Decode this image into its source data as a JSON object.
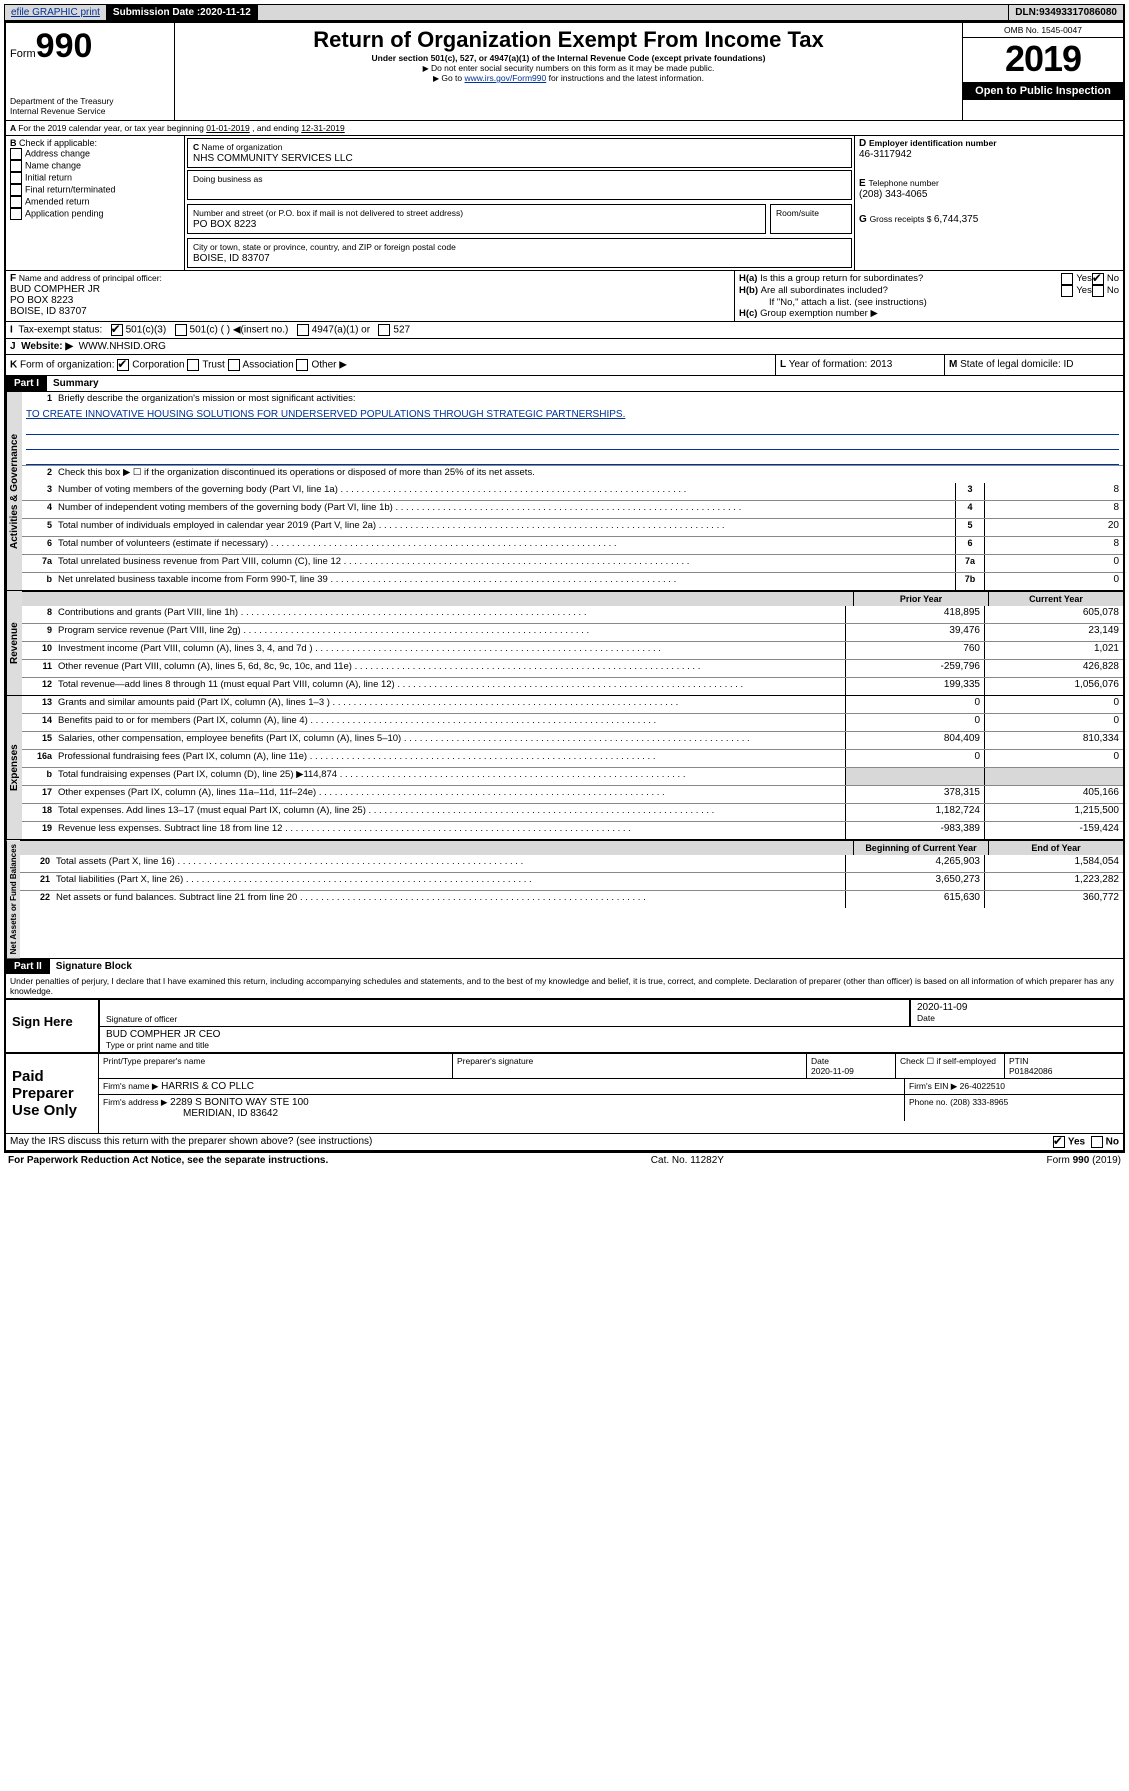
{
  "topbar": {
    "efile": "efile GRAPHIC print",
    "sub_label": "Submission Date : ",
    "sub_date": "2020-11-12",
    "dln_label": "DLN: ",
    "dln": "93493317086080"
  },
  "header": {
    "form_word": "Form",
    "form_num": "990",
    "dept1": "Department of the Treasury",
    "dept2": "Internal Revenue Service",
    "title": "Return of Organization Exempt From Income Tax",
    "sub1": "Under section 501(c), 527, or 4947(a)(1) of the Internal Revenue Code (except private foundations)",
    "sub2": "Do not enter social security numbers on this form as it may be made public.",
    "sub3a": "Go to ",
    "sub3_link": "www.irs.gov/Form990",
    "sub3b": " for instructions and the latest information.",
    "omb": "OMB No. 1545-0047",
    "year": "2019",
    "open": "Open to Public Inspection"
  },
  "A": {
    "text": "For the 2019 calendar year, or tax year beginning ",
    "begin": "01-01-2019",
    "mid": " , and ending ",
    "end": "12-31-2019"
  },
  "B": {
    "label": "Check if applicable:",
    "opts": [
      "Address change",
      "Name change",
      "Initial return",
      "Final return/terminated",
      "Amended return",
      "Application pending"
    ]
  },
  "C": {
    "name_label": "Name of organization",
    "name": "NHS COMMUNITY SERVICES LLC",
    "dba_label": "Doing business as",
    "addr_label": "Number and street (or P.O. box if mail is not delivered to street address)",
    "room_label": "Room/suite",
    "addr": "PO BOX 8223",
    "city_label": "City or town, state or province, country, and ZIP or foreign postal code",
    "city": "BOISE, ID  83707"
  },
  "D": {
    "label": "Employer identification number",
    "val": "46-3117942"
  },
  "E": {
    "label": "Telephone number",
    "val": "(208) 343-4065"
  },
  "G": {
    "label": "Gross receipts $ ",
    "val": "6,744,375"
  },
  "F": {
    "label": "Name and address of principal officer:",
    "l1": "BUD COMPHER JR",
    "l2": "PO BOX 8223",
    "l3": "BOISE, ID  83707"
  },
  "H": {
    "a": "Is this a group return for subordinates?",
    "b": "Are all subordinates included?",
    "b_note": "If \"No,\" attach a list. (see instructions)",
    "c": "Group exemption number ▶",
    "yes": "Yes",
    "no": "No"
  },
  "I": {
    "label": "Tax-exempt status:",
    "o1": "501(c)(3)",
    "o2": "501(c) (  ) ◀(insert no.)",
    "o3": "4947(a)(1) or",
    "o4": "527"
  },
  "J": {
    "label": "Website: ▶",
    "val": "WWW.NHSID.ORG"
  },
  "K": {
    "label": "Form of organization:",
    "o1": "Corporation",
    "o2": "Trust",
    "o3": "Association",
    "o4": "Other ▶"
  },
  "L": {
    "label": "Year of formation: ",
    "val": "2013"
  },
  "M": {
    "label": "State of legal domicile: ",
    "val": "ID"
  },
  "part1": {
    "hdr": "Part I",
    "title": "Summary",
    "l1": "Briefly describe the organization's mission or most significant activities:",
    "mission": "TO CREATE INNOVATIVE HOUSING SOLUTIONS FOR UNDERSERVED POPULATIONS THROUGH STRATEGIC PARTNERSHIPS.",
    "l2": "Check this box ▶ ☐  if the organization discontinued its operations or disposed of more than 25% of its net assets.",
    "tab_ag": "Activities & Governance",
    "tab_rev": "Revenue",
    "tab_exp": "Expenses",
    "tab_na": "Net Assets or Fund Balances",
    "col_prior": "Prior Year",
    "col_curr": "Current Year",
    "col_beg": "Beginning of Current Year",
    "col_end": "End of Year",
    "rows_ag": [
      {
        "n": "3",
        "d": "Number of voting members of the governing body (Part VI, line 1a)",
        "box": "3",
        "v": "8"
      },
      {
        "n": "4",
        "d": "Number of independent voting members of the governing body (Part VI, line 1b)",
        "box": "4",
        "v": "8"
      },
      {
        "n": "5",
        "d": "Total number of individuals employed in calendar year 2019 (Part V, line 2a)",
        "box": "5",
        "v": "20"
      },
      {
        "n": "6",
        "d": "Total number of volunteers (estimate if necessary)",
        "box": "6",
        "v": "8"
      },
      {
        "n": "7a",
        "d": "Total unrelated business revenue from Part VIII, column (C), line 12",
        "box": "7a",
        "v": "0"
      },
      {
        "n": "b",
        "d": "Net unrelated business taxable income from Form 990-T, line 39",
        "box": "7b",
        "v": "0"
      }
    ],
    "rows_rev": [
      {
        "n": "8",
        "d": "Contributions and grants (Part VIII, line 1h)",
        "p": "418,895",
        "c": "605,078"
      },
      {
        "n": "9",
        "d": "Program service revenue (Part VIII, line 2g)",
        "p": "39,476",
        "c": "23,149"
      },
      {
        "n": "10",
        "d": "Investment income (Part VIII, column (A), lines 3, 4, and 7d )",
        "p": "760",
        "c": "1,021"
      },
      {
        "n": "11",
        "d": "Other revenue (Part VIII, column (A), lines 5, 6d, 8c, 9c, 10c, and 11e)",
        "p": "-259,796",
        "c": "426,828"
      },
      {
        "n": "12",
        "d": "Total revenue—add lines 8 through 11 (must equal Part VIII, column (A), line 12)",
        "p": "199,335",
        "c": "1,056,076"
      }
    ],
    "rows_exp": [
      {
        "n": "13",
        "d": "Grants and similar amounts paid (Part IX, column (A), lines 1–3 )",
        "p": "0",
        "c": "0"
      },
      {
        "n": "14",
        "d": "Benefits paid to or for members (Part IX, column (A), line 4)",
        "p": "0",
        "c": "0"
      },
      {
        "n": "15",
        "d": "Salaries, other compensation, employee benefits (Part IX, column (A), lines 5–10)",
        "p": "804,409",
        "c": "810,334"
      },
      {
        "n": "16a",
        "d": "Professional fundraising fees (Part IX, column (A), line 11e)",
        "p": "0",
        "c": "0"
      },
      {
        "n": "b",
        "d": "Total fundraising expenses (Part IX, column (D), line 25) ▶114,874",
        "p": "",
        "c": "",
        "gray": true
      },
      {
        "n": "17",
        "d": "Other expenses (Part IX, column (A), lines 11a–11d, 11f–24e)",
        "p": "378,315",
        "c": "405,166"
      },
      {
        "n": "18",
        "d": "Total expenses. Add lines 13–17 (must equal Part IX, column (A), line 25)",
        "p": "1,182,724",
        "c": "1,215,500"
      },
      {
        "n": "19",
        "d": "Revenue less expenses. Subtract line 18 from line 12",
        "p": "-983,389",
        "c": "-159,424"
      }
    ],
    "rows_na": [
      {
        "n": "20",
        "d": "Total assets (Part X, line 16)",
        "p": "4,265,903",
        "c": "1,584,054"
      },
      {
        "n": "21",
        "d": "Total liabilities (Part X, line 26)",
        "p": "3,650,273",
        "c": "1,223,282"
      },
      {
        "n": "22",
        "d": "Net assets or fund balances. Subtract line 21 from line 20",
        "p": "615,630",
        "c": "360,772"
      }
    ]
  },
  "part2": {
    "hdr": "Part II",
    "title": "Signature Block",
    "decl": "Under penalties of perjury, I declare that I have examined this return, including accompanying schedules and statements, and to the best of my knowledge and belief, it is true, correct, and complete. Declaration of preparer (other than officer) is based on all information of which preparer has any knowledge.",
    "sign_here": "Sign Here",
    "sig_officer": "Signature of officer",
    "sig_date": "2020-11-09",
    "date_lbl": "Date",
    "officer_name": "BUD COMPHER JR CEO",
    "type_name": "Type or print name and title",
    "paid": "Paid Preparer Use Only",
    "h_prep": "Print/Type preparer's name",
    "h_sig": "Preparer's signature",
    "h_date": "Date",
    "prep_date": "2020-11-09",
    "h_check": "Check ☐ if self-employed",
    "h_ptin": "PTIN",
    "ptin": "P01842086",
    "firm_name_lbl": "Firm's name    ▶",
    "firm_name": "HARRIS & CO PLLC",
    "firm_ein_lbl": "Firm's EIN ▶ ",
    "firm_ein": "26-4022510",
    "firm_addr_lbl": "Firm's address ▶",
    "firm_addr1": "2289 S BONITO WAY STE 100",
    "firm_addr2": "MERIDIAN, ID  83642",
    "phone_lbl": "Phone no. ",
    "phone": "(208) 333-8965",
    "discuss": "May the IRS discuss this return with the preparer shown above? (see instructions)",
    "yes": "Yes",
    "no": "No"
  },
  "footer": {
    "l": "For Paperwork Reduction Act Notice, see the separate instructions.",
    "m": "Cat. No. 11282Y",
    "r": "Form 990 (2019)"
  }
}
